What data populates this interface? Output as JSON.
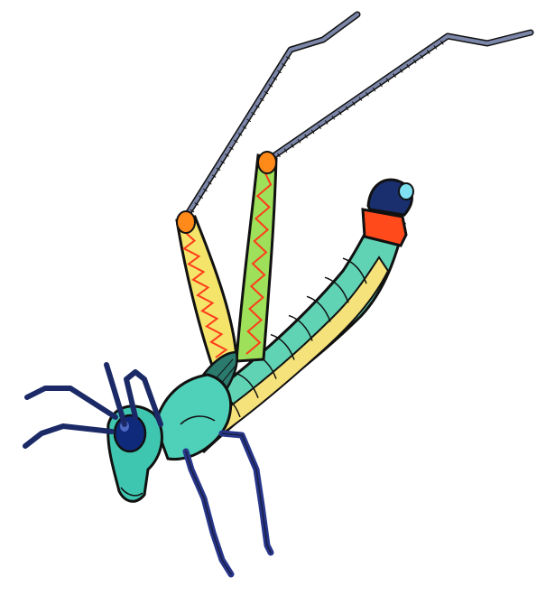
{
  "illustration": {
    "subject": "grasshopper",
    "colors": {
      "abdomen": "#5fd3b4",
      "abdomen_shade": "#2e9c8c",
      "belly": "#f6e27a",
      "tip_red": "#ff4a1c",
      "tip_navy": "#1a2f6e",
      "tip_highlight": "#7ee0f0",
      "thorax": "#4fd0b8",
      "head": "#3fc6b0",
      "eye": "#0f2a7a",
      "antenna": "#1b2a66",
      "femur_orange": "#ff8a1a",
      "femur_yellow": "#f4e46a",
      "femur_green": "#9ee05a",
      "femur_stripe": "#ff3b1a",
      "tibia": "#7b86a8",
      "front_leg": "#27368a",
      "wing": "#2a7a6e",
      "outline": "#111111"
    }
  }
}
